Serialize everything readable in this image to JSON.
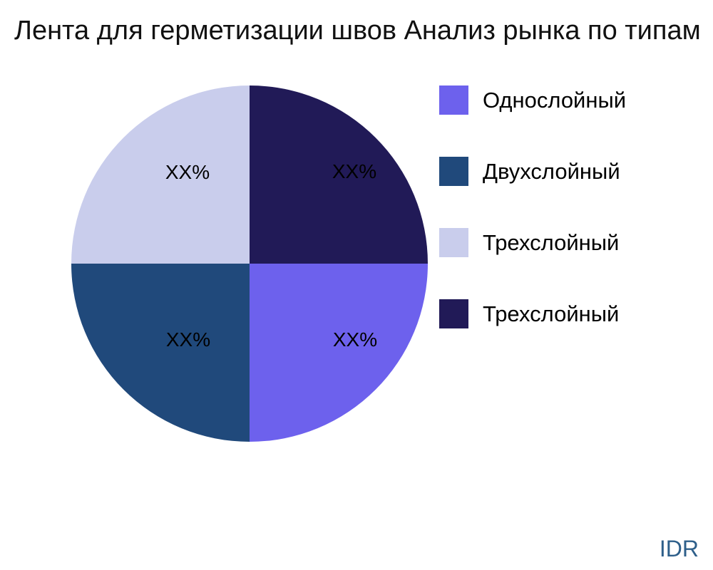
{
  "chart_data": {
    "type": "pie",
    "title": "Лента для герметизации швов Анализ рынка по типам",
    "slices": [
      {
        "label": "Однослойный",
        "value": 25,
        "display": "XX%",
        "color": "#6D61ED"
      },
      {
        "label": "Двухслойный",
        "value": 25,
        "display": "XX%",
        "color": "#20497B"
      },
      {
        "label": "Трехслойный",
        "value": 25,
        "display": "XX%",
        "color": "#C9CDEC"
      },
      {
        "label": "Трехслойный",
        "value": 25,
        "display": "XX%",
        "color": "#211A57"
      }
    ],
    "start_angle_deg": 0,
    "direction": "clockwise",
    "legend_position": "right",
    "note": "slice values shown only as XX% placeholders; four equal quadrants"
  },
  "watermark": {
    "text": "IDR",
    "color": "#2E5F8A"
  },
  "colors": {
    "background": "#FFFFFF",
    "text": "#000000",
    "title": "#111111"
  }
}
